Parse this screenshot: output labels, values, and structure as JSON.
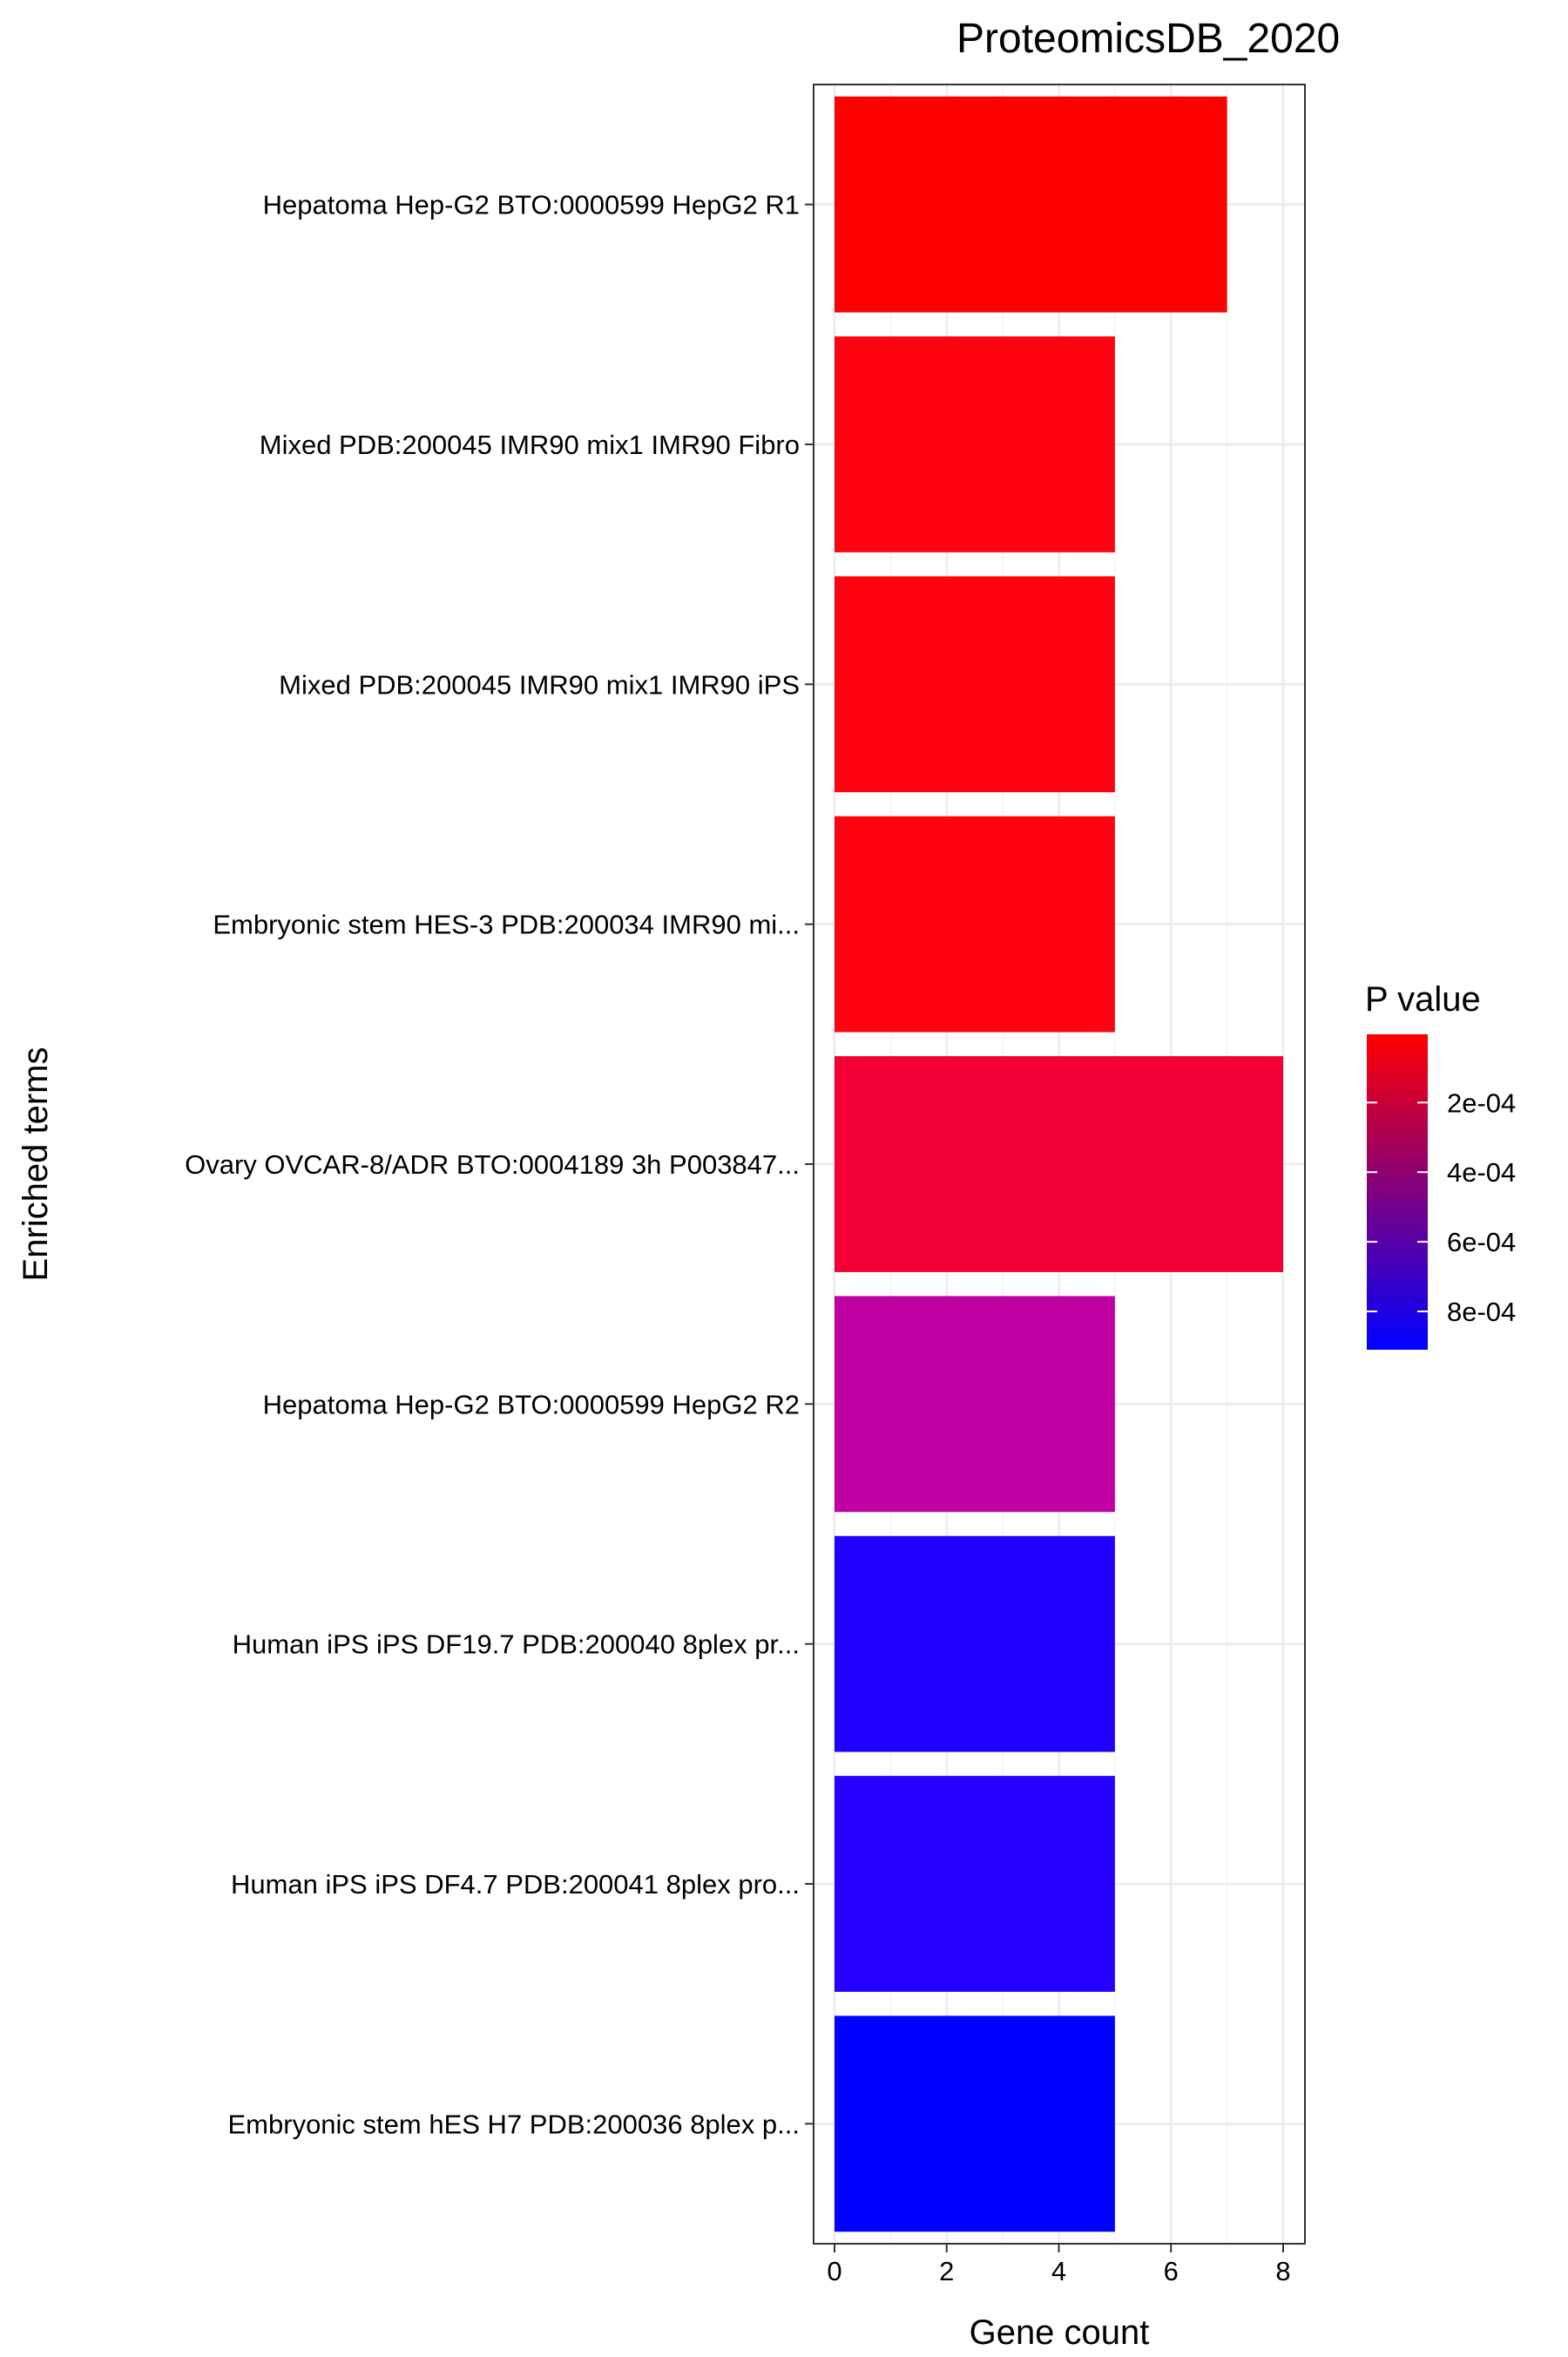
{
  "chart_data": {
    "type": "bar",
    "orientation": "horizontal",
    "title": "ProteomicsDB_2020",
    "xlabel": "Gene count",
    "ylabel": "Enriched terms",
    "xlim": [
      0,
      8
    ],
    "xticks": [
      0,
      2,
      4,
      6,
      8
    ],
    "grid": true,
    "categories": [
      "Hepatoma Hep-G2 BTO:0000599 HepG2 R1",
      "Mixed PDB:200045 IMR90 mix1 IMR90 Fibro",
      "Mixed PDB:200045 IMR90 mix1 IMR90 iPS",
      "Embryonic stem HES-3 PDB:200034 IMR90 mi...",
      "Ovary OVCAR-8/ADR BTO:0004189 3h P003847...",
      "Hepatoma Hep-G2 BTO:0000599 HepG2 R2",
      "Human iPS iPS DF19.7 PDB:200040 8plex pr...",
      "Human iPS iPS DF4.7 PDB:200041 8plex pro...",
      "Embryonic stem hES H7 PDB:200036 8plex p..."
    ],
    "values": [
      7,
      5,
      5,
      5,
      8,
      5,
      5,
      5,
      5
    ],
    "p_values": [
      4e-06,
      3e-05,
      3e-05,
      3e-05,
      0.0001,
      0.00045,
      0.00082,
      0.00085,
      0.00091
    ],
    "colors": [
      "#FF0000",
      "#FF0210",
      "#FF0210",
      "#FF0210",
      "#F20035",
      "#BF00A2",
      "#2000FF",
      "#2400FF",
      "#0000FF"
    ],
    "legend": {
      "title": "P value",
      "position": "right",
      "ticks": [
        "2e-04",
        "4e-04",
        "6e-04",
        "8e-04"
      ],
      "tick_values": [
        0.0002,
        0.0004,
        0.0006,
        0.0008
      ],
      "range": [
        4e-06,
        0.00091
      ],
      "color_low": "#FF0000",
      "color_high": "#0000FF"
    }
  }
}
